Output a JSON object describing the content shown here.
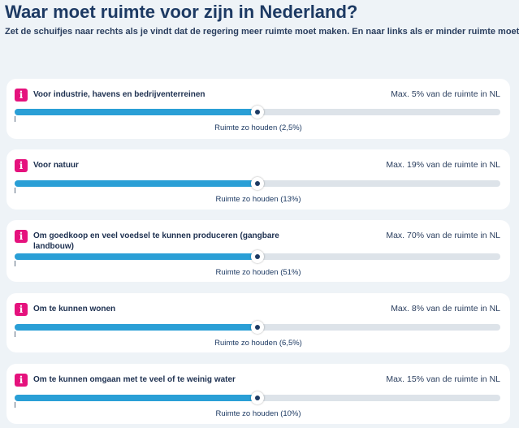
{
  "header": {
    "title": "Waar moet ruimte voor zijn in Nederland?",
    "subtitle": "Zet de schuifjes naar rechts als je vindt dat de regering meer ruimte moet maken. En naar links als er minder ruimte moet zijn."
  },
  "colors": {
    "info_icon": "#e5127d",
    "slider_fill": "#2a9fd6",
    "slider_track": "#dde3e9",
    "title": "#1d3a63"
  },
  "sliders": [
    {
      "label": "Voor industrie, havens en bedrijventerreinen",
      "max": "Max. 5% van de ruimte in NL",
      "hint": "Ruimte zo houden (2,5%)",
      "level": 0.5,
      "icon": "info-icon"
    },
    {
      "label": "Voor natuur",
      "max": "Max. 19% van de ruimte in NL",
      "hint": "Ruimte zo houden (13%)",
      "level": 0.5,
      "icon": "info-icon"
    },
    {
      "label": "Om goedkoop en veel voedsel te kunnen produceren (gangbare landbouw)",
      "max": "Max. 70% van de ruimte in NL",
      "hint": "Ruimte zo houden (51%)",
      "level": 0.5,
      "icon": "info-icon"
    },
    {
      "label": "Om te kunnen wonen",
      "max": "Max. 8% van de ruimte in NL",
      "hint": "Ruimte zo houden (6,5%)",
      "level": 0.5,
      "icon": "info-icon"
    },
    {
      "label": "Om te kunnen omgaan met te veel of te weinig water",
      "max": "Max. 15% van de ruimte in NL",
      "hint": "Ruimte zo houden (10%)",
      "level": 0.5,
      "icon": "info-icon"
    }
  ]
}
